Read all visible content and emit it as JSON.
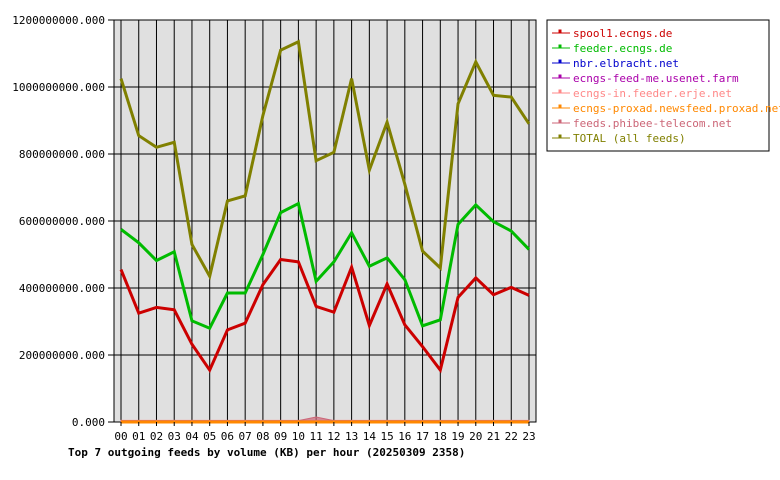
{
  "chart_data": {
    "type": "line",
    "title": "Top 7 outgoing feeds by volume (KB) per hour (20250309 2358)",
    "xlabel": "",
    "ylabel": "",
    "categories": [
      "00",
      "01",
      "02",
      "03",
      "04",
      "05",
      "06",
      "07",
      "08",
      "09",
      "10",
      "11",
      "12",
      "13",
      "14",
      "15",
      "16",
      "17",
      "18",
      "19",
      "20",
      "21",
      "22",
      "23"
    ],
    "ylim": [
      0,
      1200000000
    ],
    "yticks": [
      {
        "value": 0,
        "label": "0.000"
      },
      {
        "value": 200000000,
        "label": "200000000.000"
      },
      {
        "value": 400000000,
        "label": "400000000.000"
      },
      {
        "value": 600000000,
        "label": "600000000.000"
      },
      {
        "value": 800000000,
        "label": "800000000.000"
      },
      {
        "value": 1000000000,
        "label": "1000000000.000"
      },
      {
        "value": 1200000000,
        "label": "1200000000.000"
      }
    ],
    "grid": true,
    "legend_position": "right",
    "plot_background": "#e0e0e0",
    "series": [
      {
        "name": "spool1.ecngs.de",
        "color": "#cc0000",
        "kind": "line",
        "values": [
          455000000,
          325000000,
          342000000,
          335000000,
          232000000,
          155000000,
          275000000,
          295000000,
          410000000,
          485000000,
          478000000,
          345000000,
          328000000,
          462000000,
          288000000,
          412000000,
          290000000,
          225000000,
          155000000,
          372000000,
          430000000,
          380000000,
          402000000,
          378000000
        ]
      },
      {
        "name": "feeder.ecngs.de",
        "color": "#00bb00",
        "kind": "line",
        "values": [
          575000000,
          535000000,
          482000000,
          508000000,
          302000000,
          280000000,
          385000000,
          385000000,
          500000000,
          625000000,
          652000000,
          420000000,
          478000000,
          565000000,
          465000000,
          490000000,
          425000000,
          287000000,
          305000000,
          590000000,
          648000000,
          598000000,
          570000000,
          515000000
        ]
      },
      {
        "name": "nbr.elbracht.net",
        "color": "#0000cc",
        "kind": "line",
        "values": [
          0,
          0,
          0,
          0,
          0,
          0,
          0,
          0,
          0,
          0,
          0,
          0,
          0,
          0,
          0,
          0,
          0,
          0,
          0,
          0,
          0,
          0,
          0,
          0
        ]
      },
      {
        "name": "ecngs-feed-me.usenet.farm",
        "color": "#aa00aa",
        "kind": "line",
        "values": [
          0,
          0,
          0,
          0,
          0,
          0,
          0,
          0,
          0,
          0,
          0,
          0,
          0,
          0,
          0,
          0,
          0,
          0,
          0,
          0,
          0,
          0,
          0,
          0
        ]
      },
      {
        "name": "ecngs-in.feeder.erje.net",
        "color": "#ff8888",
        "kind": "area",
        "values": [
          5000000,
          5000000,
          5000000,
          5000000,
          5000000,
          5000000,
          5000000,
          5000000,
          5000000,
          5000000,
          5000000,
          5000000,
          5000000,
          5000000,
          5000000,
          5000000,
          5000000,
          5000000,
          5000000,
          5000000,
          5000000,
          5000000,
          5000000,
          5000000
        ]
      },
      {
        "name": "ecngs-proxad.newsfeed.proxad.net",
        "color": "#ff8800",
        "kind": "line",
        "values": [
          0,
          0,
          0,
          0,
          0,
          0,
          0,
          0,
          0,
          0,
          0,
          0,
          0,
          0,
          0,
          0,
          0,
          0,
          0,
          0,
          0,
          0,
          0,
          0
        ]
      },
      {
        "name": "feeds.phibee-telecom.net",
        "color": "#cc6677",
        "kind": "area",
        "values": [
          4000000,
          4000000,
          4000000,
          4000000,
          4000000,
          4000000,
          4000000,
          4000000,
          4000000,
          4000000,
          4000000,
          15000000,
          4000000,
          4000000,
          4000000,
          4000000,
          4000000,
          4000000,
          4000000,
          4000000,
          4000000,
          4000000,
          4000000,
          4000000
        ]
      },
      {
        "name": "TOTAL (all feeds)",
        "color": "#808000",
        "kind": "line",
        "values": [
          1025000000,
          855000000,
          820000000,
          835000000,
          530000000,
          435000000,
          660000000,
          675000000,
          915000000,
          1110000000,
          1135000000,
          780000000,
          805000000,
          1025000000,
          752000000,
          895000000,
          710000000,
          510000000,
          460000000,
          950000000,
          1075000000,
          975000000,
          970000000,
          890000000
        ]
      }
    ]
  }
}
